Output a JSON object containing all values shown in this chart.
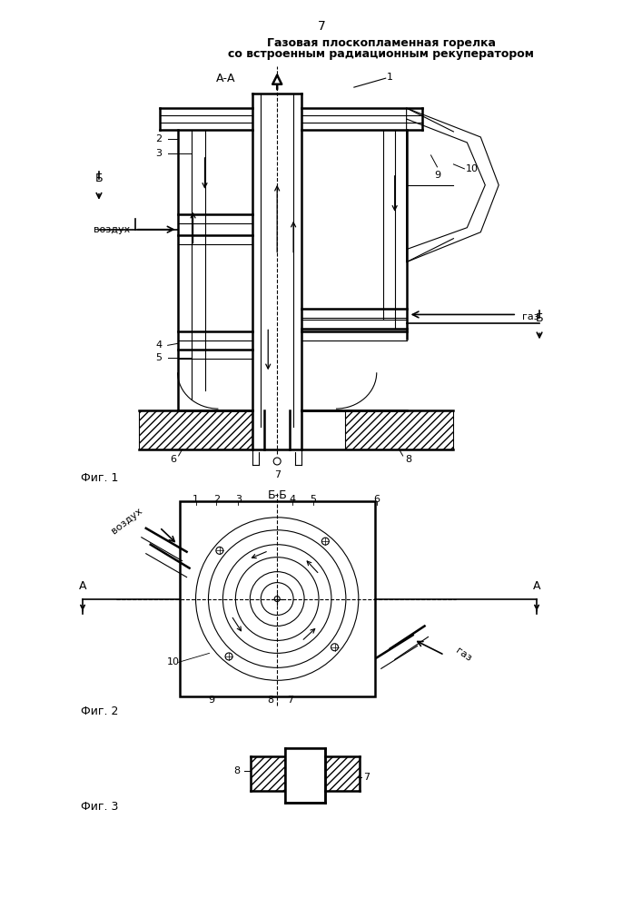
{
  "title_line1": "Газовая плоскопламенная горелка",
  "title_line2": "со встроенным радиационным рекуператором",
  "page_number": "7",
  "fig1_label": "Фиг. 1",
  "fig2_label": "Фиг. 2",
  "fig3_label": "Фиг. 3",
  "section_aa": "А-А",
  "section_bb": "Б-Б",
  "vozduh": "воздух",
  "gaz": "газ",
  "bg_color": "#ffffff",
  "line_color": "#000000"
}
